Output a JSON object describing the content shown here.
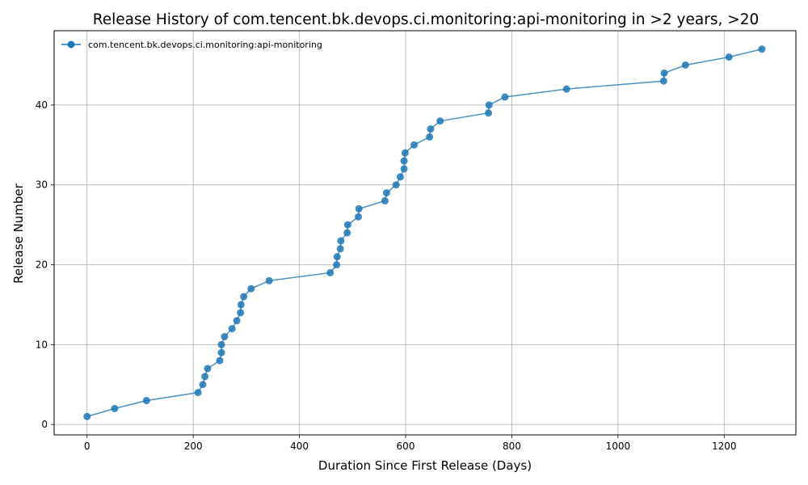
{
  "chart_data": {
    "type": "line",
    "title": "Release History of com.tencent.bk.devops.ci.monitoring:api-monitoring in >2 years, >20",
    "xlabel": "Duration Since First Release (Days)",
    "ylabel": "Release Number",
    "xlim": [
      -62,
      1335
    ],
    "ylim": [
      -1.3,
      49.3
    ],
    "xticks": [
      0,
      200,
      400,
      600,
      800,
      1000,
      1200
    ],
    "yticks": [
      0,
      10,
      20,
      30,
      40
    ],
    "grid": true,
    "legend_position": "upper-left",
    "series": [
      {
        "name": "com.tencent.bk.devops.ci.monitoring:api-monitoring",
        "color": "#1f77b4",
        "x": [
          0,
          52,
          112,
          209,
          218,
          222,
          227,
          250,
          253,
          253,
          259,
          273,
          282,
          289,
          290,
          295,
          309,
          343,
          458,
          470,
          471,
          477,
          478,
          490,
          491,
          511,
          512,
          561,
          564,
          582,
          590,
          597,
          597,
          599,
          616,
          645,
          647,
          665,
          756,
          757,
          787,
          903,
          1086,
          1087,
          1127,
          1209,
          1271
        ],
        "y": [
          1,
          2,
          3,
          4,
          5,
          6,
          7,
          8,
          9,
          10,
          11,
          12,
          13,
          14,
          15,
          16,
          17,
          18,
          19,
          20,
          21,
          22,
          23,
          24,
          25,
          26,
          27,
          28,
          29,
          30,
          31,
          32,
          33,
          34,
          35,
          36,
          37,
          38,
          39,
          40,
          41,
          42,
          43,
          44,
          45,
          46,
          47
        ]
      }
    ]
  }
}
